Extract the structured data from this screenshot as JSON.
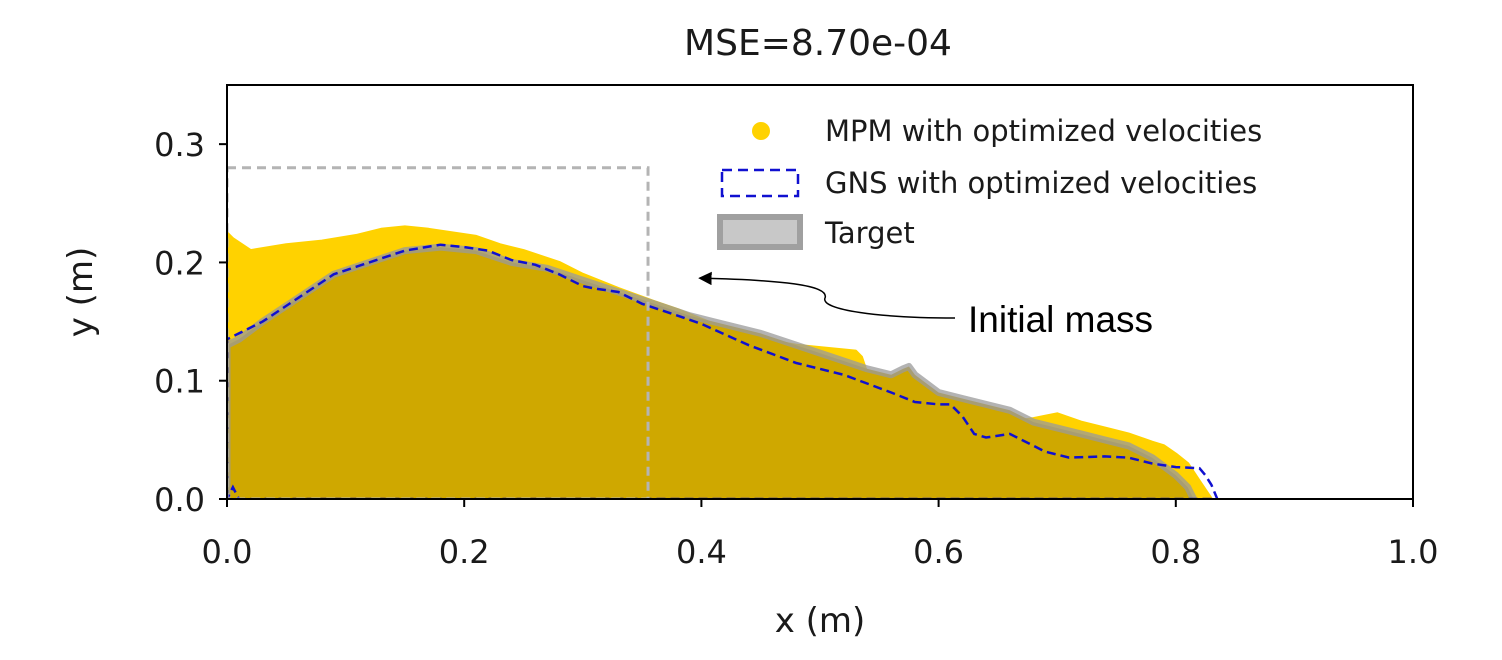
{
  "chart_data": {
    "type": "area",
    "title": "MSE=8.70e-04",
    "xlabel": "x (m)",
    "ylabel": "y (m)",
    "xlim": [
      0.0,
      1.0
    ],
    "ylim": [
      0.0,
      0.35
    ],
    "xticks": [
      "0.0",
      "0.2",
      "0.4",
      "0.6",
      "0.8",
      "1.0"
    ],
    "xtick_values": [
      0.0,
      0.2,
      0.4,
      0.6,
      0.8,
      1.0
    ],
    "yticks": [
      "0.0",
      "0.1",
      "0.2",
      "0.3"
    ],
    "ytick_values": [
      0.0,
      0.1,
      0.2,
      0.3
    ],
    "grid": false,
    "legend_position": "top-right",
    "colors": {
      "mpm": "#ffd200",
      "overlap": "#cfa800",
      "gns": "#1010d0",
      "target": "#999999",
      "initial_box": "#b4b4b4"
    },
    "series": [
      {
        "name": "MPM with optimized velocities",
        "kind": "scatter-fill",
        "x": [
          0.0,
          0.0,
          0.005,
          0.02,
          0.05,
          0.08,
          0.11,
          0.13,
          0.15,
          0.17,
          0.19,
          0.21,
          0.23,
          0.25,
          0.28,
          0.3,
          0.33,
          0.36,
          0.38,
          0.41,
          0.43,
          0.45,
          0.48,
          0.5,
          0.53,
          0.535,
          0.54,
          0.56,
          0.58,
          0.61,
          0.64,
          0.66,
          0.68,
          0.69,
          0.7,
          0.72,
          0.74,
          0.76,
          0.78,
          0.79,
          0.8,
          0.81,
          0.82,
          0.83
        ],
        "y": [
          0.0,
          0.225,
          0.22,
          0.21,
          0.215,
          0.218,
          0.223,
          0.228,
          0.23,
          0.228,
          0.225,
          0.222,
          0.215,
          0.21,
          0.2,
          0.19,
          0.178,
          0.167,
          0.16,
          0.148,
          0.14,
          0.135,
          0.13,
          0.128,
          0.125,
          0.12,
          0.105,
          0.1,
          0.095,
          0.085,
          0.07,
          0.065,
          0.068,
          0.07,
          0.072,
          0.065,
          0.06,
          0.055,
          0.048,
          0.045,
          0.038,
          0.03,
          0.015,
          0.0
        ]
      },
      {
        "name": "GNS with optimized velocities",
        "kind": "dashed-outline",
        "x": [
          0.0,
          0.0,
          0.01,
          0.03,
          0.06,
          0.09,
          0.12,
          0.15,
          0.18,
          0.2,
          0.22,
          0.24,
          0.26,
          0.28,
          0.3,
          0.31,
          0.33,
          0.35,
          0.38,
          0.4,
          0.44,
          0.48,
          0.52,
          0.56,
          0.58,
          0.6,
          0.61,
          0.62,
          0.63,
          0.64,
          0.66,
          0.68,
          0.69,
          0.71,
          0.74,
          0.76,
          0.78,
          0.8,
          0.82,
          0.825,
          0.83,
          0.835,
          0.01,
          0.005,
          0.0
        ],
        "y": [
          0.0,
          0.135,
          0.14,
          0.15,
          0.17,
          0.19,
          0.2,
          0.21,
          0.215,
          0.213,
          0.21,
          0.202,
          0.198,
          0.19,
          0.18,
          0.178,
          0.175,
          0.165,
          0.155,
          0.148,
          0.13,
          0.115,
          0.105,
          0.09,
          0.082,
          0.08,
          0.08,
          0.07,
          0.055,
          0.052,
          0.055,
          0.045,
          0.04,
          0.035,
          0.036,
          0.035,
          0.03,
          0.027,
          0.026,
          0.02,
          0.012,
          0.0,
          0.0,
          0.01,
          0.0
        ]
      },
      {
        "name": "Target",
        "kind": "thick-outline",
        "x": [
          0.0,
          0.0,
          0.01,
          0.03,
          0.06,
          0.09,
          0.12,
          0.15,
          0.18,
          0.21,
          0.24,
          0.27,
          0.3,
          0.33,
          0.36,
          0.39,
          0.41,
          0.43,
          0.45,
          0.48,
          0.51,
          0.54,
          0.56,
          0.57,
          0.575,
          0.58,
          0.6,
          0.62,
          0.64,
          0.66,
          0.68,
          0.7,
          0.72,
          0.74,
          0.76,
          0.78,
          0.8,
          0.81,
          0.815
        ],
        "y": [
          0.0,
          0.13,
          0.135,
          0.15,
          0.17,
          0.19,
          0.2,
          0.21,
          0.213,
          0.21,
          0.2,
          0.195,
          0.185,
          0.175,
          0.165,
          0.155,
          0.15,
          0.145,
          0.14,
          0.13,
          0.12,
          0.11,
          0.105,
          0.11,
          0.112,
          0.105,
          0.09,
          0.085,
          0.08,
          0.075,
          0.065,
          0.06,
          0.055,
          0.05,
          0.045,
          0.035,
          0.02,
          0.01,
          0.0
        ]
      }
    ],
    "initial_mass_box": {
      "x0": 0.0,
      "x1": 0.355,
      "y0": 0.0,
      "y1": 0.28
    },
    "annotation": {
      "text": "Initial mass",
      "arrow_to": [
        0.39,
        0.185
      ]
    }
  }
}
